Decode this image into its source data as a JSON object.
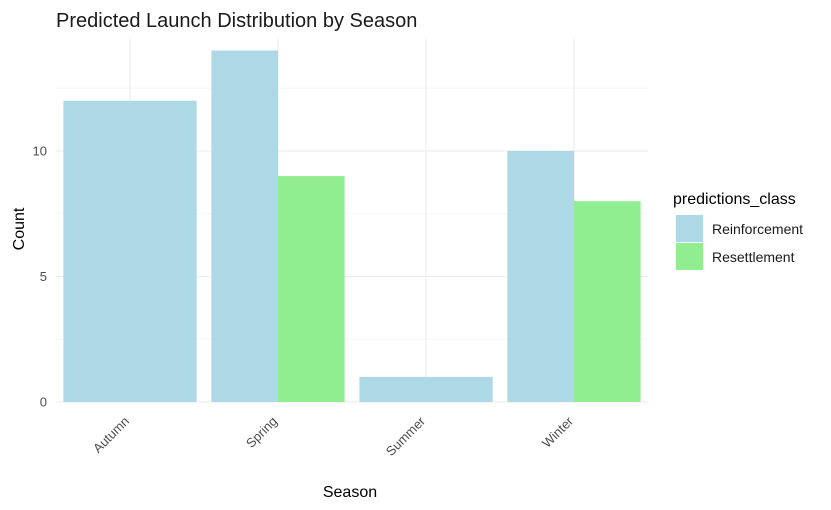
{
  "chart_data": {
    "type": "bar",
    "title": "Predicted Launch Distribution by Season",
    "xlabel": "Season",
    "ylabel": "Count",
    "categories": [
      "Autumn",
      "Spring",
      "Summer",
      "Winter"
    ],
    "series": [
      {
        "name": "Reinforcement",
        "color": "#add8e6",
        "values": [
          12,
          14,
          1,
          10
        ]
      },
      {
        "name": "Resettlement",
        "color": "#90ee90",
        "values": [
          0,
          9,
          0,
          8
        ]
      }
    ],
    "yticks": [
      0,
      5,
      10
    ],
    "ylim": [
      0,
      14.5
    ],
    "grid": true,
    "legend": {
      "title": "predictions_class",
      "position": "right"
    }
  }
}
